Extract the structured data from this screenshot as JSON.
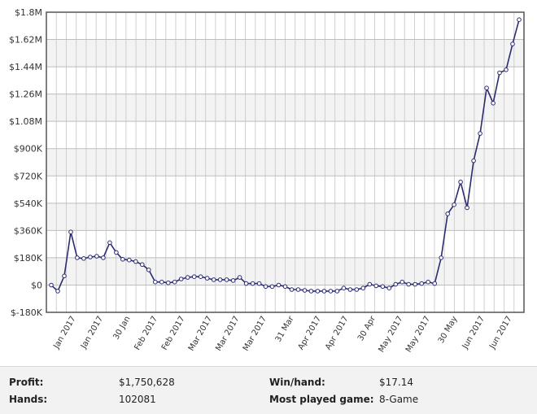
{
  "chart_data": {
    "type": "line",
    "y_unit": "USD",
    "ylim": [
      -180000,
      1800000
    ],
    "y_ticks": [
      -180000,
      0,
      180000,
      360000,
      540000,
      720000,
      900000,
      1080000,
      1260000,
      1440000,
      1620000,
      1800000
    ],
    "y_tick_labels": [
      "$-180K",
      "$0",
      "$180K",
      "$360K",
      "$540K",
      "$720K",
      "$900K",
      "$1.08M",
      "$1.26M",
      "$1.44M",
      "$1.62M",
      "$1.8M"
    ],
    "x_tick_labels": [
      "Jan 2017",
      "Jan 2017",
      "30 Jan",
      "Feb 2017",
      "Feb 2017",
      "Mar 2017",
      "Mar 2017",
      "Mar 2017",
      "31 Mar",
      "Apr 2017",
      "Apr 2017",
      "30 Apr",
      "May 2017",
      "May 2017",
      "30 May",
      "Jun 2017",
      "Jun 2017"
    ],
    "grid": true,
    "line_color": "#2b2b6f",
    "series": [
      {
        "values": [
          0,
          -40000,
          60000,
          350000,
          180000,
          175000,
          185000,
          190000,
          180000,
          280000,
          215000,
          170000,
          165000,
          155000,
          135000,
          100000,
          20000,
          20000,
          15000,
          20000,
          40000,
          50000,
          55000,
          55000,
          45000,
          35000,
          35000,
          35000,
          30000,
          50000,
          10000,
          10000,
          10000,
          -10000,
          -10000,
          0,
          -10000,
          -30000,
          -30000,
          -35000,
          -40000,
          -40000,
          -40000,
          -40000,
          -40000,
          -20000,
          -30000,
          -30000,
          -20000,
          5000,
          -5000,
          -10000,
          -20000,
          5000,
          20000,
          5000,
          5000,
          10000,
          20000,
          10000,
          180000,
          470000,
          530000,
          680000,
          510000,
          820000,
          1000000,
          1300000,
          1200000,
          1400000,
          1420000,
          1590000,
          1750628
        ]
      }
    ]
  },
  "stats": {
    "profit_label": "Profit:",
    "profit_value": "$1,750,628",
    "hands_label": "Hands:",
    "hands_value": "102081",
    "winhand_label": "Win/hand:",
    "winhand_value": "$17.14",
    "game_label": "Most played game:",
    "game_value": "8-Game"
  }
}
